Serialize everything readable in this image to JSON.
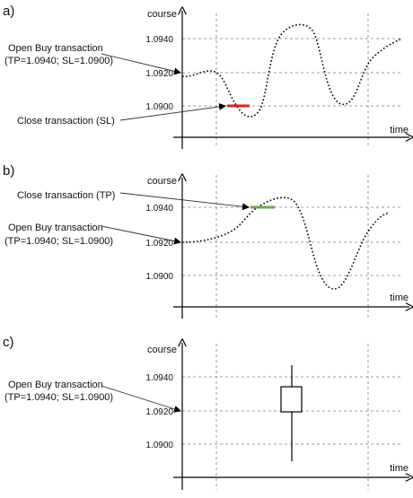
{
  "panels": [
    {
      "letter": "a)",
      "y_axis_label": "course",
      "x_axis_label": "time",
      "ticks": [
        "1.0940",
        "1.0920",
        "1.0900"
      ],
      "open_label_line1": "Open Buy transaction",
      "open_label_line2": "(TP=1.0940; SL=1.0900)",
      "close_label": "Close transaction (SL)",
      "marker_color": "#e02020"
    },
    {
      "letter": "b)",
      "y_axis_label": "course",
      "x_axis_label": "time",
      "ticks": [
        "1.0940",
        "1.0920",
        "1.0900"
      ],
      "open_label_line1": "Open Buy transaction",
      "open_label_line2": "(TP=1.0940; SL=1.0900)",
      "close_label": "Close transaction (TP)",
      "marker_color": "#6aa84f"
    },
    {
      "letter": "c)",
      "y_axis_label": "course",
      "x_axis_label": "time",
      "ticks": [
        "1.0940",
        "1.0920",
        "1.0900"
      ],
      "open_label_line1": "Open Buy transaction",
      "open_label_line2": "(TP=1.0940; SL=1.0900)"
    }
  ]
}
